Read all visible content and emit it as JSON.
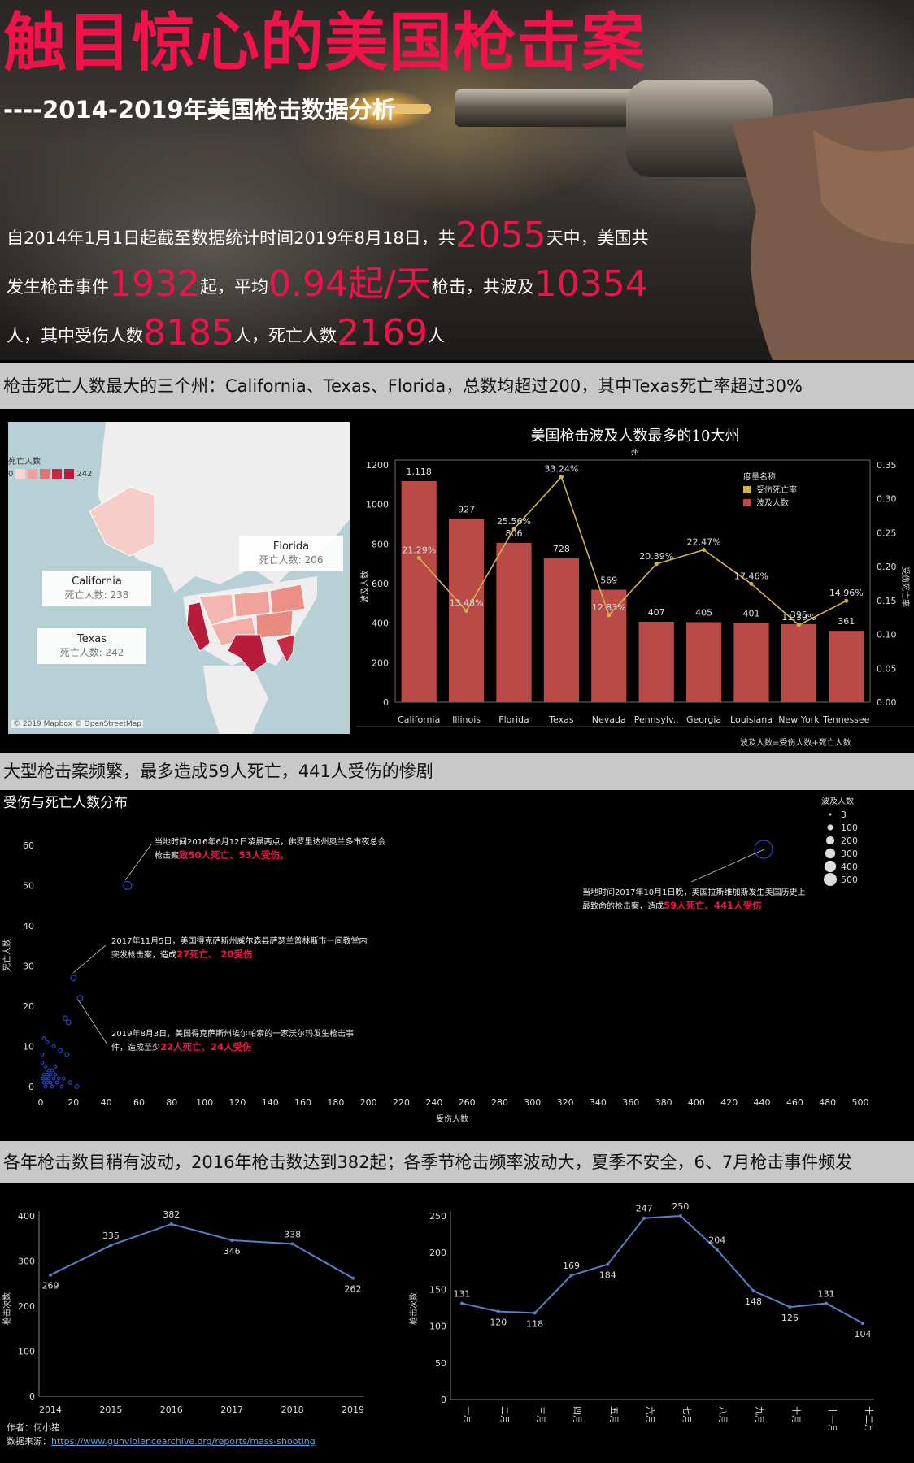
{
  "hero": {
    "title": "触目惊心的美国枪击案",
    "subtitle": "----2014-2019年美国枪击数据分析",
    "line1_a": "自2014年1月1日起截至数据统计时间2019年8月18日，共",
    "days": "2055",
    "line1_b": "天中，美国共",
    "line2_a": "发生枪击事件",
    "incidents": "1932",
    "line2_b": "起，平均",
    "per_day": "0.94起/天",
    "line2_c": "枪击，共波及",
    "affected": "10354",
    "line3_a": "人，其中受伤人数",
    "injured": "8185",
    "line3_b": "人，死亡人数",
    "deaths": "2169",
    "line3_c": "人"
  },
  "sections": {
    "s1": "枪击死亡人数最大的三个州：California、Texas、Florida，总数均超过200，其中Texas死亡率超过30%",
    "s2": "大型枪击案频繁，最多造成59人死亡，441人受伤的惨剧",
    "s3": "各年枪击数目稍有波动，2016年枪击数达到382起；各季节枪击频率波动大，夏季不安全，6、7月枪击事件频发"
  },
  "map": {
    "legend_title": "死亡人数",
    "legend_min": "0",
    "legend_max": "242",
    "attribution": "© 2019 Mapbox © OpenStreetMap",
    "cards": [
      {
        "state": "Florida",
        "label": "死亡人数: 206"
      },
      {
        "state": "California",
        "label": "死亡人数: 238"
      },
      {
        "state": "Texas",
        "label": "死亡人数: 242"
      }
    ],
    "colors": {
      "low": "#f8d7d2",
      "mid": "#e57373",
      "high": "#b71c3a"
    }
  },
  "scatter_title": "受伤与死亡人数分布",
  "scatter_annotations": [
    {
      "text1": "当地时间2016年6月12日凌晨两点，佛罗里达州奥兰多市夜总会",
      "text2": "枪击案",
      "red": "致50人死亡、53人受伤。"
    },
    {
      "text1": "2017年11月5日，美国得克萨斯州威尔森县萨瑟兰普林斯市一间教堂内",
      "text2": "突发枪击案，造成",
      "red": "27死亡、 20受伤"
    },
    {
      "text1": "2019年8月3日，美国得克萨斯州埃尔帕索的一家沃尔玛发生枪击事",
      "text2": "件，造成至少",
      "red": "22人死亡、24人受伤"
    },
    {
      "text1": "当地时间2017年10月1日晚，美国拉斯维加斯发生美国历史上",
      "text2": "最致命的枪击案，造成",
      "red": "59人死亡、441人受伤"
    }
  ],
  "footer": {
    "author": "作者：何小猪",
    "source_label": "数据来源：",
    "source_url": "https://www.gunviolencearchive.org/reports/mass-shooting"
  },
  "chart_data": [
    {
      "type": "bar",
      "title": "美国枪击波及人数最多的10大州",
      "subtitle": "州",
      "categories": [
        "California",
        "Illinois",
        "Florida",
        "Texas",
        "Nevada",
        "Pennsylv..",
        "Georgia",
        "Louisiana",
        "New York",
        "Tennessee"
      ],
      "series": [
        {
          "name": "波及人数",
          "kind": "bar",
          "color": "#b94a48",
          "axis": "left",
          "values": [
            1118,
            927,
            806,
            728,
            569,
            407,
            405,
            401,
            395,
            361
          ],
          "labels": [
            "1,118",
            "927",
            "806",
            "728",
            "569",
            "407",
            "405",
            "401",
            "395",
            "361"
          ]
        },
        {
          "name": "受伤死亡率",
          "kind": "line",
          "color": "#d4b24a",
          "axis": "right",
          "values": [
            0.2129,
            0.1348,
            0.2556,
            0.3324,
            0.1283,
            0.2039,
            0.2247,
            0.1746,
            0.1139,
            0.1496
          ],
          "labels": [
            "21.29%",
            "13.48%",
            "25.56%",
            "33.24%",
            "12.83%",
            "20.39%",
            "22.47%",
            "17.46%",
            "11.39%",
            "14.96%"
          ]
        }
      ],
      "ylabel": "波及人数",
      "ylabel_right": "受伤死亡率",
      "ylim": [
        0,
        1200
      ],
      "yticks": [
        0,
        200,
        400,
        600,
        800,
        1000,
        1200
      ],
      "ylim_right": [
        0,
        0.35
      ],
      "yticks_right": [
        "0.00",
        "0.05",
        "0.10",
        "0.15",
        "0.20",
        "0.25",
        "0.30",
        "0.35"
      ],
      "legend_title": "度量名称",
      "legend_position": "top-right",
      "note": "波及人数=受伤人数+死亡人数"
    },
    {
      "type": "scatter",
      "title": "受伤与死亡人数分布",
      "xlabel": "受伤人数",
      "ylabel": "死亡人数",
      "xlim": [
        0,
        500
      ],
      "xticks": [
        0,
        20,
        40,
        60,
        80,
        100,
        120,
        140,
        160,
        180,
        200,
        220,
        240,
        260,
        280,
        300,
        320,
        340,
        360,
        380,
        400,
        420,
        440,
        460,
        480,
        500
      ],
      "ylim": [
        0,
        60
      ],
      "yticks": [
        0,
        10,
        20,
        30,
        40,
        50,
        60
      ],
      "size_legend_title": "波及人数",
      "size_legend": [
        3,
        100,
        200,
        300,
        400,
        500
      ],
      "color": "#2a3fb0",
      "points": [
        {
          "x": 53,
          "y": 50
        },
        {
          "x": 441,
          "y": 59
        },
        {
          "x": 20,
          "y": 27
        },
        {
          "x": 24,
          "y": 22
        },
        {
          "x": 15,
          "y": 17
        },
        {
          "x": 17,
          "y": 16
        },
        {
          "x": 2,
          "y": 12
        },
        {
          "x": 4,
          "y": 11
        },
        {
          "x": 8,
          "y": 10
        },
        {
          "x": 12,
          "y": 9
        },
        {
          "x": 16,
          "y": 8
        },
        {
          "x": 1,
          "y": 6
        },
        {
          "x": 3,
          "y": 5
        },
        {
          "x": 5,
          "y": 4
        },
        {
          "x": 7,
          "y": 4
        },
        {
          "x": 2,
          "y": 3
        },
        {
          "x": 4,
          "y": 3
        },
        {
          "x": 6,
          "y": 3
        },
        {
          "x": 9,
          "y": 3
        },
        {
          "x": 11,
          "y": 2
        },
        {
          "x": 1,
          "y": 2
        },
        {
          "x": 3,
          "y": 2
        },
        {
          "x": 5,
          "y": 2
        },
        {
          "x": 8,
          "y": 2
        },
        {
          "x": 14,
          "y": 2
        },
        {
          "x": 18,
          "y": 1
        },
        {
          "x": 2,
          "y": 1
        },
        {
          "x": 4,
          "y": 1
        },
        {
          "x": 6,
          "y": 1
        },
        {
          "x": 10,
          "y": 1
        },
        {
          "x": 13,
          "y": 0
        },
        {
          "x": 3,
          "y": 0
        },
        {
          "x": 7,
          "y": 0
        },
        {
          "x": 22,
          "y": 0
        },
        {
          "x": 9,
          "y": 5
        },
        {
          "x": 1,
          "y": 8
        }
      ]
    },
    {
      "type": "line",
      "categories": [
        "2014",
        "2015",
        "2016",
        "2017",
        "2018",
        "2019"
      ],
      "values": [
        269,
        335,
        382,
        346,
        338,
        262
      ],
      "ylabel": "枪击次数",
      "ylim": [
        0,
        400
      ],
      "yticks": [
        0,
        100,
        200,
        300,
        400
      ],
      "color": "#5b7fc7"
    },
    {
      "type": "line",
      "categories": [
        "一月",
        "二月",
        "三月",
        "四月",
        "五月",
        "六月",
        "七月",
        "八月",
        "九月",
        "十月",
        "十一月",
        "十二月"
      ],
      "values": [
        131,
        120,
        118,
        169,
        184,
        247,
        250,
        204,
        148,
        126,
        131,
        104
      ],
      "ylabel": "枪击次数",
      "ylim": [
        0,
        250
      ],
      "yticks": [
        0,
        50,
        100,
        150,
        200,
        250
      ],
      "color": "#5b7fc7"
    }
  ]
}
